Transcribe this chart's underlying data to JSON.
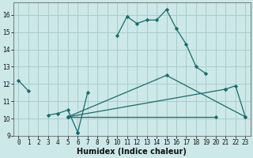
{
  "xlabel": "Humidex (Indice chaleur)",
  "bg_color": "#cce8e8",
  "grid_color": "#aacccc",
  "line_color": "#1a6b6b",
  "xlim": [
    -0.5,
    23.5
  ],
  "ylim": [
    9,
    16.7
  ],
  "yticks": [
    9,
    10,
    11,
    12,
    13,
    14,
    15,
    16
  ],
  "xticks": [
    0,
    1,
    2,
    3,
    4,
    5,
    6,
    7,
    8,
    9,
    10,
    11,
    12,
    13,
    14,
    15,
    16,
    17,
    18,
    19,
    20,
    21,
    22,
    23
  ],
  "xlabel_fontsize": 7,
  "tick_fontsize": 5.5,
  "curves": [
    {
      "segments": [
        {
          "x": [
            0,
            1
          ],
          "y": [
            12.2,
            11.6
          ]
        },
        {
          "x": [
            3,
            4,
            5,
            6
          ],
          "y": [
            10.2,
            10.3,
            10.5,
            9.2
          ]
        },
        {
          "x": [
            6,
            7
          ],
          "y": [
            9.2,
            11.5
          ]
        },
        {
          "x": [
            10,
            11,
            12,
            13,
            14,
            15,
            16,
            17,
            18,
            19
          ],
          "y": [
            14.8,
            15.9,
            15.5,
            15.7,
            15.7,
            16.3,
            15.2,
            14.3,
            13.0,
            12.6
          ]
        },
        {
          "x": [
            21,
            22,
            23
          ],
          "y": [
            11.7,
            11.9,
            10.1
          ]
        }
      ]
    },
    {
      "x": [
        5,
        21
      ],
      "y": [
        10.1,
        11.7
      ]
    },
    {
      "x": [
        5,
        15,
        23
      ],
      "y": [
        10.1,
        12.5,
        10.1
      ]
    },
    {
      "x": [
        5,
        20
      ],
      "y": [
        10.1,
        10.1
      ]
    }
  ]
}
